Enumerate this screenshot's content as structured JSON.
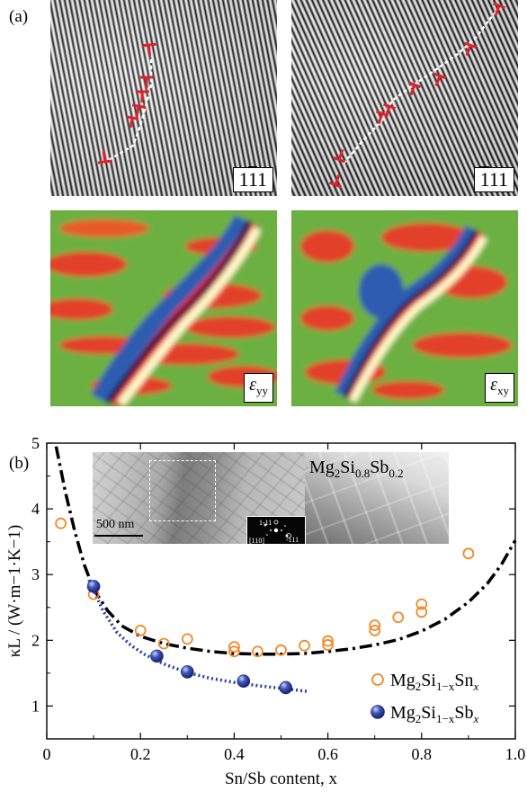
{
  "panel_a": {
    "label": "(a)",
    "fringe_labels": {
      "left": {
        "pre": "1",
        "bar": "1",
        "post": "1"
      },
      "right": {
        "pre": "",
        "bar": "1",
        "post": "11"
      }
    },
    "strain_labels": [
      {
        "sym": "ε",
        "sub": "yy"
      },
      {
        "sym": "ε",
        "sub": "xy"
      }
    ]
  },
  "panel_b": {
    "label": "(b)",
    "inset": {
      "title_parts": [
        "Mg",
        "2",
        "Si",
        "0.8",
        "Sb",
        "0.2"
      ],
      "scale_bar": "500 nm",
      "saed_labels": [
        "1-11",
        "-111",
        "[110]"
      ]
    }
  },
  "chart_data": {
    "type": "scatter",
    "xlabel": "Sn/Sb content, x",
    "ylabel": "κL / (W·m−1·K−1)",
    "xlim": [
      0,
      1.0
    ],
    "ylim": [
      0.5,
      5
    ],
    "xticks": [
      "0",
      "0.2",
      "0.4",
      "0.6",
      "0.8",
      "1.0"
    ],
    "yticks": [
      "1",
      "2",
      "3",
      "4",
      "5"
    ],
    "series": [
      {
        "name": "Mg2Si1−xSnx",
        "marker": "open-circle",
        "color": "#f08a2a",
        "points": [
          [
            0.03,
            3.78
          ],
          [
            0.1,
            2.7
          ],
          [
            0.2,
            2.15
          ],
          [
            0.25,
            1.95
          ],
          [
            0.3,
            2.02
          ],
          [
            0.4,
            1.9
          ],
          [
            0.4,
            1.83
          ],
          [
            0.45,
            1.83
          ],
          [
            0.5,
            1.85
          ],
          [
            0.55,
            1.92
          ],
          [
            0.6,
            1.93
          ],
          [
            0.6,
            1.99
          ],
          [
            0.7,
            2.15
          ],
          [
            0.7,
            2.23
          ],
          [
            0.75,
            2.35
          ],
          [
            0.8,
            2.43
          ],
          [
            0.8,
            2.55
          ],
          [
            0.9,
            3.32
          ]
        ],
        "fit": {
          "style": "dash-dot",
          "color": "#000000",
          "points": [
            [
              0.02,
              4.95
            ],
            [
              0.04,
              4.25
            ],
            [
              0.06,
              3.65
            ],
            [
              0.08,
              3.15
            ],
            [
              0.1,
              2.78
            ],
            [
              0.13,
              2.45
            ],
            [
              0.16,
              2.22
            ],
            [
              0.2,
              2.06
            ],
            [
              0.25,
              1.95
            ],
            [
              0.3,
              1.88
            ],
            [
              0.35,
              1.83
            ],
            [
              0.4,
              1.8
            ],
            [
              0.45,
              1.79
            ],
            [
              0.5,
              1.79
            ],
            [
              0.55,
              1.8
            ],
            [
              0.6,
              1.83
            ],
            [
              0.65,
              1.87
            ],
            [
              0.7,
              1.93
            ],
            [
              0.75,
              2.01
            ],
            [
              0.8,
              2.14
            ],
            [
              0.85,
              2.32
            ],
            [
              0.9,
              2.58
            ],
            [
              0.94,
              2.86
            ],
            [
              0.97,
              3.15
            ],
            [
              1.0,
              3.52
            ]
          ]
        }
      },
      {
        "name": "Mg2Si1−xSbx",
        "marker": "filled-circle",
        "color": "#2a3f95",
        "points": [
          [
            0.1,
            2.82
          ],
          [
            0.235,
            1.76
          ],
          [
            0.3,
            1.52
          ],
          [
            0.42,
            1.38
          ],
          [
            0.51,
            1.28
          ]
        ],
        "fit": {
          "style": "dotted",
          "color": "#2a3fa8",
          "points": [
            [
              0.09,
              2.92
            ],
            [
              0.12,
              2.45
            ],
            [
              0.15,
              2.12
            ],
            [
              0.18,
              1.92
            ],
            [
              0.21,
              1.78
            ],
            [
              0.25,
              1.64
            ],
            [
              0.3,
              1.51
            ],
            [
              0.35,
              1.42
            ],
            [
              0.4,
              1.36
            ],
            [
              0.45,
              1.31
            ],
            [
              0.5,
              1.27
            ],
            [
              0.56,
              1.22
            ]
          ]
        }
      }
    ],
    "legend": {
      "position": "bottom-right",
      "entries": [
        {
          "parts": [
            "Mg",
            "2",
            "Si",
            "1−x",
            "Sn",
            "x"
          ]
        },
        {
          "parts": [
            "Mg",
            "2",
            "Si",
            "1−x",
            "Sb",
            "x"
          ]
        }
      ]
    }
  }
}
